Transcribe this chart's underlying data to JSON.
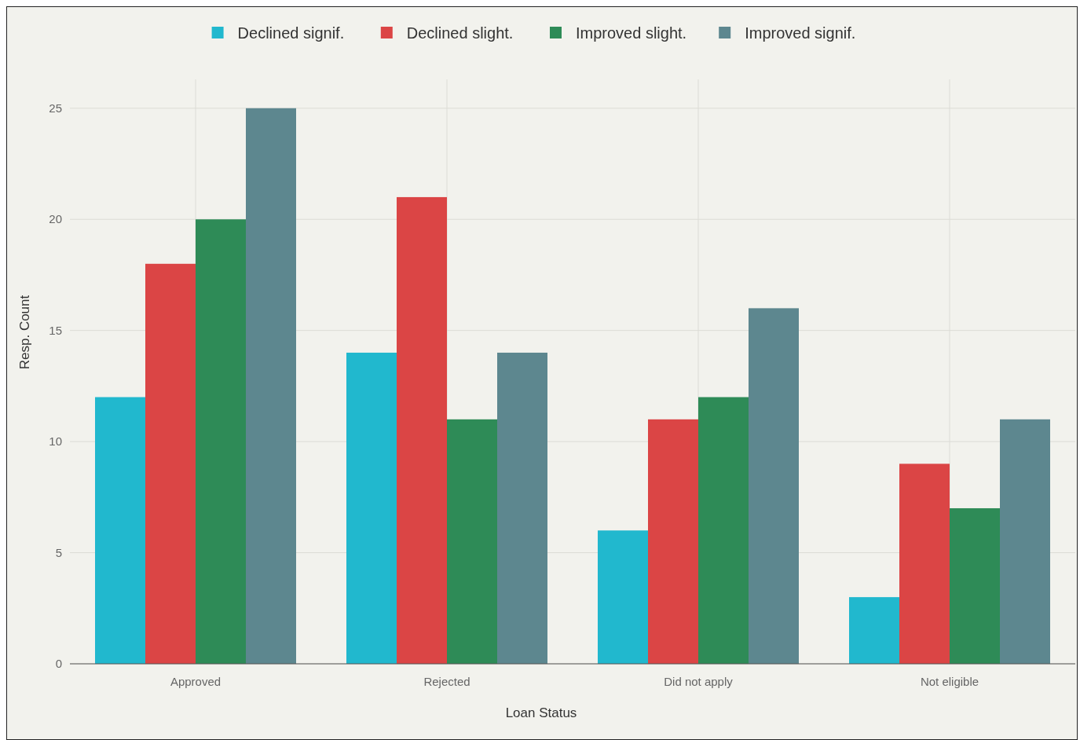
{
  "chart_data": {
    "type": "bar",
    "xlabel": "Loan Status",
    "ylabel": "Resp. Count",
    "categories": [
      "Approved",
      "Rejected",
      "Did not apply",
      "Not eligible"
    ],
    "series": [
      {
        "name": "Declined signif.",
        "color": "#21b8ce",
        "values": [
          12,
          14,
          6,
          3
        ]
      },
      {
        "name": "Declined slight.",
        "color": "#db4545",
        "values": [
          18,
          21,
          11,
          9
        ]
      },
      {
        "name": "Improved slight.",
        "color": "#2e8b57",
        "values": [
          20,
          11,
          12,
          7
        ]
      },
      {
        "name": "Improved signif.",
        "color": "#5d878f",
        "values": [
          25,
          14,
          16,
          11
        ]
      }
    ],
    "ylim": [
      0,
      26.3
    ],
    "yticks": [
      0,
      5,
      10,
      15,
      20,
      25
    ],
    "grid": true,
    "legend": "top"
  }
}
